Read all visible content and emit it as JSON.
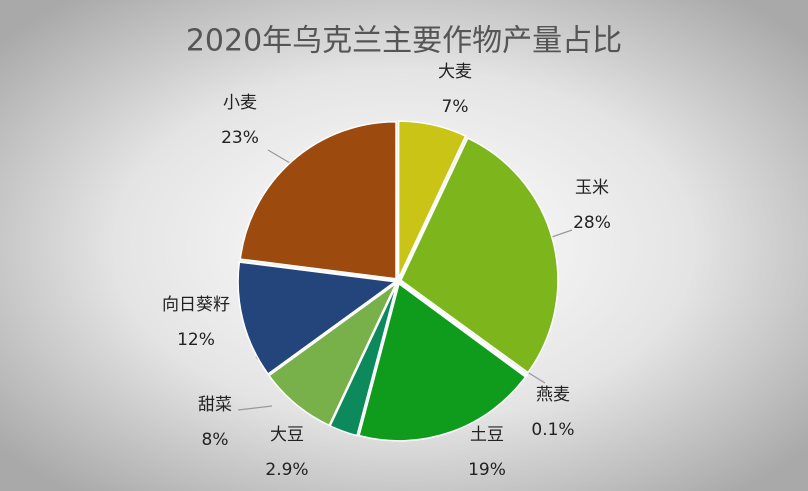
{
  "chart_data": {
    "type": "pie",
    "title": "2020年乌克兰主要作物产量占比",
    "categories": [
      "大麦",
      "玉米",
      "燕麦",
      "土豆",
      "大豆",
      "甜菜",
      "向日葵籽",
      "小麦"
    ],
    "values": [
      7,
      28,
      0.1,
      19,
      2.9,
      8,
      12,
      23
    ],
    "value_labels": [
      "7%",
      "28%",
      "0.1%",
      "19%",
      "2.9%",
      "8%",
      "12%",
      "23%"
    ],
    "colors": [
      "#c9c415",
      "#7cb61c",
      "#2f8f2a",
      "#0f9b1c",
      "#0d8a5c",
      "#78b04a",
      "#24457b",
      "#9c4a0e"
    ]
  }
}
